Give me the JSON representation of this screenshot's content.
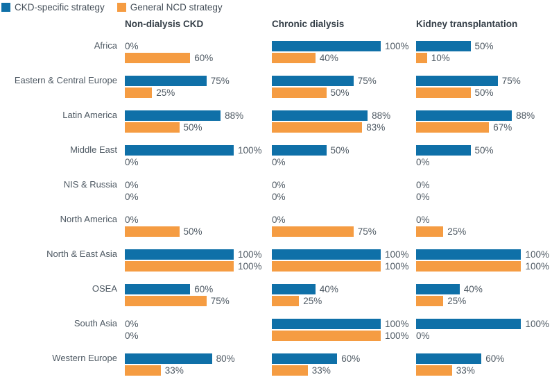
{
  "legend": {
    "items": [
      {
        "label": "CKD-specific strategy",
        "color": "#0f70a8"
      },
      {
        "label": "General NCD strategy",
        "color": "#f59c42"
      }
    ]
  },
  "colors": {
    "ckd_specific": "#0f70a8",
    "general_ncd": "#f59c42"
  },
  "chart_data": {
    "type": "bar",
    "orientation": "horizontal",
    "unit": "%",
    "xlim": [
      0,
      100
    ],
    "grid": false,
    "legend_position": "top-left",
    "series_names": [
      "CKD-specific strategy",
      "General NCD strategy"
    ],
    "columns": [
      "Non-dialysis CKD",
      "Chronic dialysis",
      "Kidney transplantation"
    ],
    "rows": [
      {
        "region": "Africa",
        "values": [
          [
            0,
            60
          ],
          [
            100,
            40
          ],
          [
            50,
            10
          ]
        ]
      },
      {
        "region": "Eastern & Central Europe",
        "values": [
          [
            75,
            25
          ],
          [
            75,
            50
          ],
          [
            75,
            50
          ]
        ]
      },
      {
        "region": "Latin America",
        "values": [
          [
            88,
            50
          ],
          [
            88,
            83
          ],
          [
            88,
            67
          ]
        ]
      },
      {
        "region": "Middle East",
        "values": [
          [
            100,
            0
          ],
          [
            50,
            0
          ],
          [
            50,
            0
          ]
        ]
      },
      {
        "region": "NIS & Russia",
        "values": [
          [
            0,
            0
          ],
          [
            0,
            0
          ],
          [
            0,
            0
          ]
        ]
      },
      {
        "region": "North America",
        "values": [
          [
            0,
            50
          ],
          [
            0,
            75
          ],
          [
            0,
            25
          ]
        ]
      },
      {
        "region": "North & East Asia",
        "values": [
          [
            100,
            100
          ],
          [
            100,
            100
          ],
          [
            100,
            100
          ]
        ]
      },
      {
        "region": "OSEA",
        "values": [
          [
            60,
            75
          ],
          [
            40,
            25
          ],
          [
            40,
            25
          ]
        ]
      },
      {
        "region": "South Asia",
        "values": [
          [
            0,
            0
          ],
          [
            100,
            100
          ],
          [
            100,
            0
          ]
        ]
      },
      {
        "region": "Western Europe",
        "values": [
          [
            80,
            33
          ],
          [
            60,
            33
          ],
          [
            60,
            33
          ]
        ]
      }
    ]
  }
}
